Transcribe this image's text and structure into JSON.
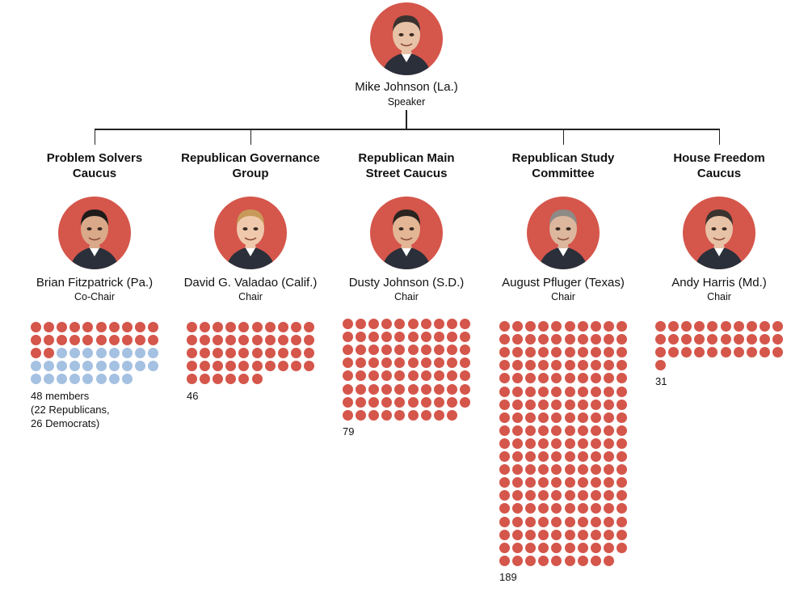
{
  "colors": {
    "republican": "#d5564b",
    "democrat": "#a5c1e2",
    "avatar_bg": "#d5564b",
    "connector": "#222222"
  },
  "speaker": {
    "name": "Mike Johnson (La.)",
    "role": "Speaker",
    "avatar_icon": "portrait-icon"
  },
  "groups": [
    {
      "title": "Problem Solvers\nCaucus",
      "leader_name": "Brian Fitzpatrick (Pa.)",
      "leader_role": "Co-Chair",
      "republicans": 22,
      "democrats": 26,
      "count_label": "48 members\n(22 Republicans,\n26 Democrats)"
    },
    {
      "title": "Republican Governance\nGroup",
      "leader_name": "David G. Valadao (Calif.)",
      "leader_role": "Chair",
      "republicans": 46,
      "democrats": 0,
      "count_label": "46"
    },
    {
      "title": "Republican Main\nStreet Caucus",
      "leader_name": "Dusty Johnson (S.D.)",
      "leader_role": "Chair",
      "republicans": 79,
      "democrats": 0,
      "count_label": "79"
    },
    {
      "title": "Republican Study\nCommittee",
      "leader_name": "August Pfluger (Texas)",
      "leader_role": "Chair",
      "republicans": 189,
      "democrats": 0,
      "count_label": "189"
    },
    {
      "title": "House Freedom\nCaucus",
      "leader_name": "Andy Harris (Md.)",
      "leader_role": "Chair",
      "republicans": 31,
      "democrats": 0,
      "count_label": "31"
    }
  ]
}
